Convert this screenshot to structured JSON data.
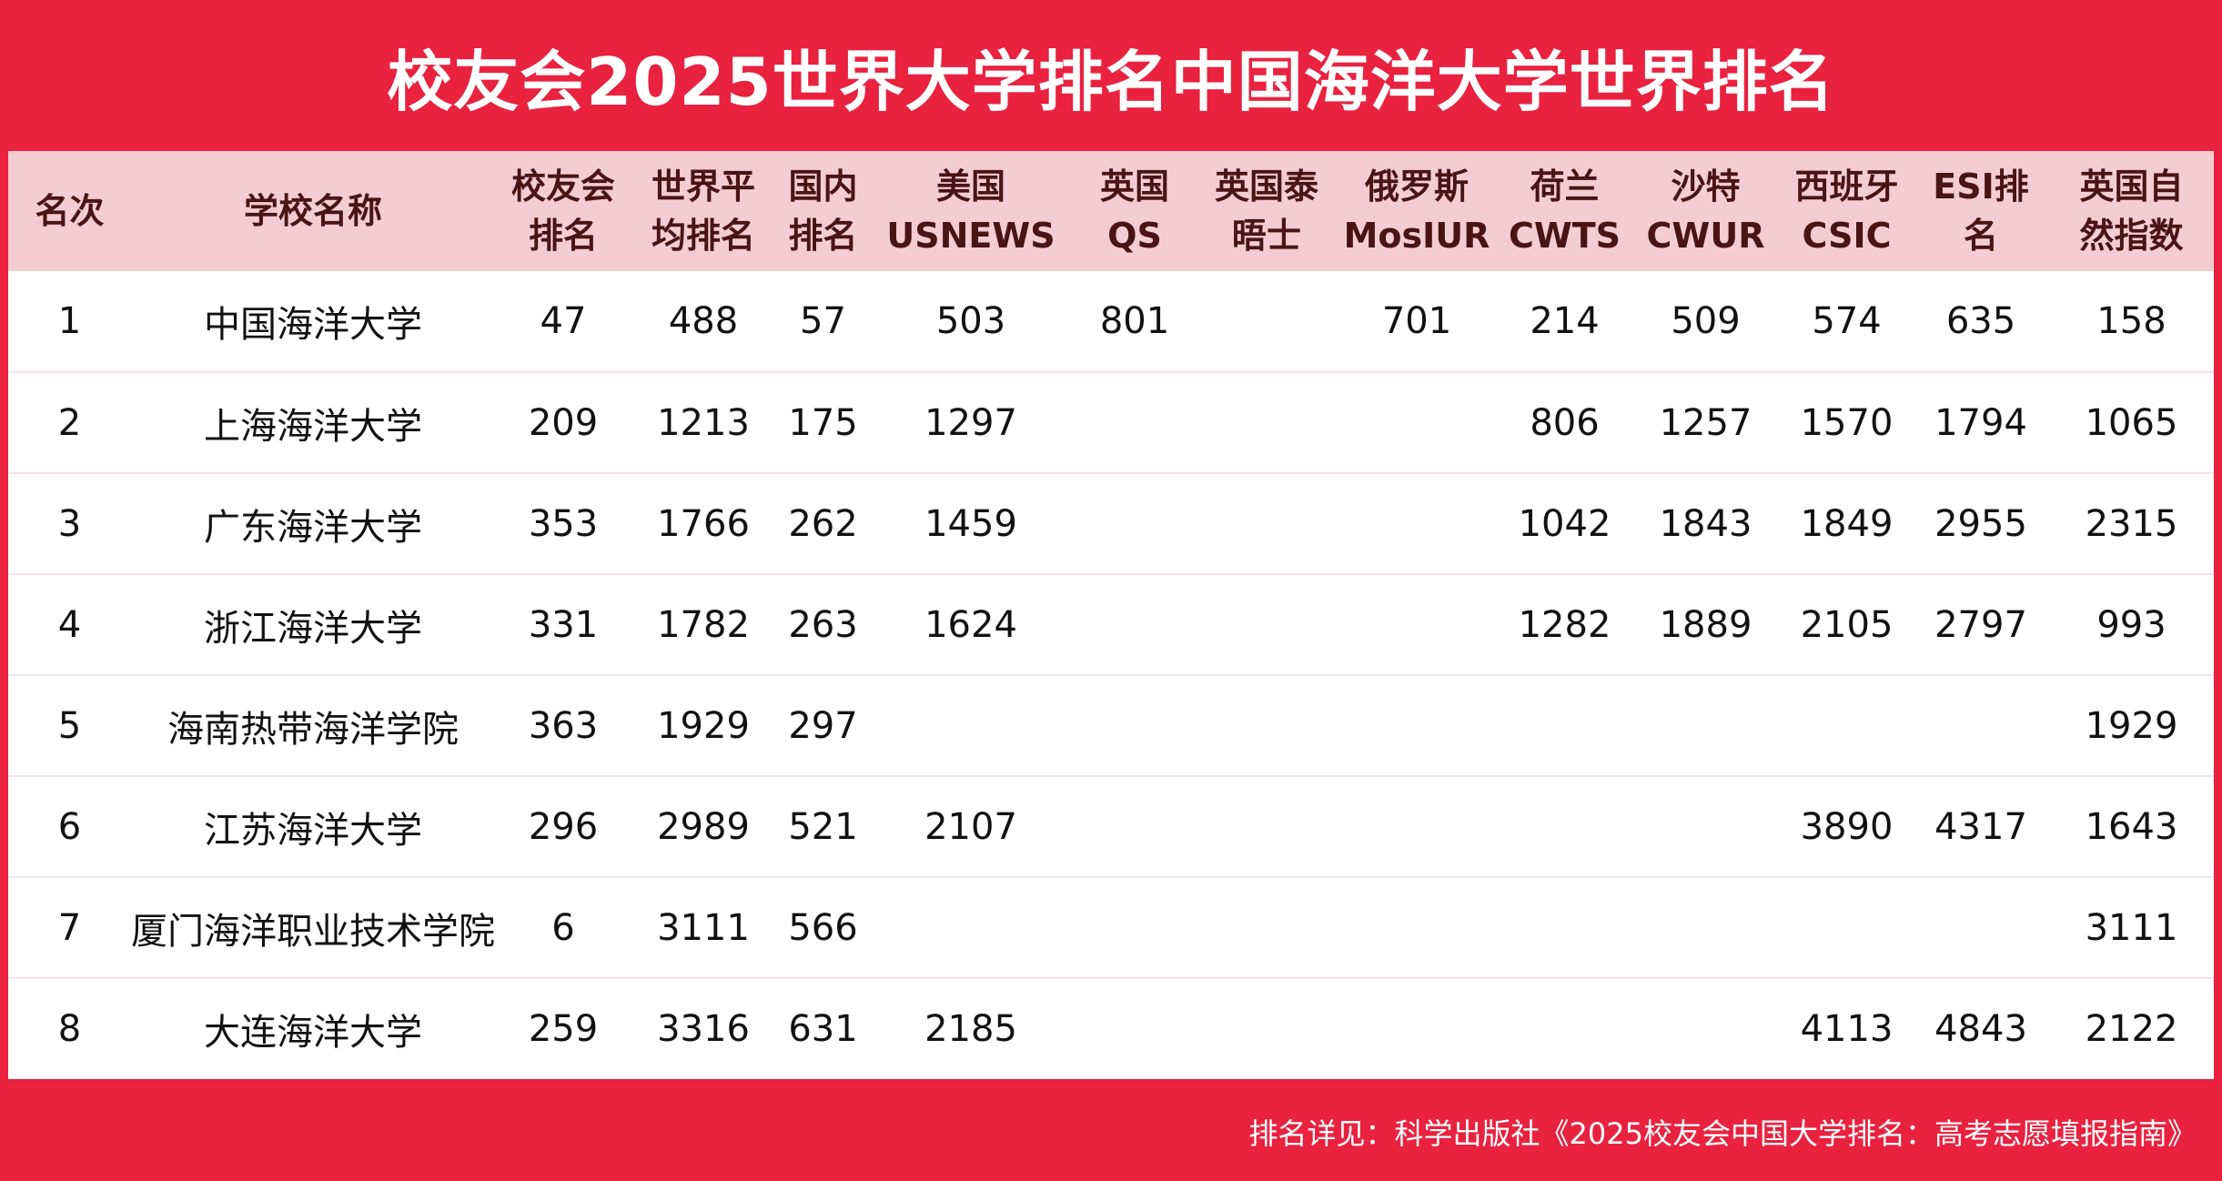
{
  "title": "校友会2025世界大学排名中国海洋大学世界排名",
  "table": {
    "headers": [
      {
        "line1": "名次",
        "line2": ""
      },
      {
        "line1": "学校名称",
        "line2": ""
      },
      {
        "line1": "校友会",
        "line2": "排名"
      },
      {
        "line1": "世界平",
        "line2": "均排名"
      },
      {
        "line1": "国内",
        "line2": "排名"
      },
      {
        "line1": "美国",
        "line2": "USNEWS"
      },
      {
        "line1": "英国",
        "line2": "QS"
      },
      {
        "line1": "英国泰",
        "line2": "晤士"
      },
      {
        "line1": "俄罗斯",
        "line2": "MosIUR"
      },
      {
        "line1": "荷兰",
        "line2": "CWTS"
      },
      {
        "line1": "沙特",
        "line2": "CWUR"
      },
      {
        "line1": "西班牙",
        "line2": "CSIC"
      },
      {
        "line1": "ESI排",
        "line2": "名"
      },
      {
        "line1": "英国自",
        "line2": "然指数"
      }
    ],
    "rows": [
      [
        "1",
        "中国海洋大学",
        "47",
        "488",
        "57",
        "503",
        "801",
        "",
        "701",
        "214",
        "509",
        "574",
        "635",
        "158"
      ],
      [
        "2",
        "上海海洋大学",
        "209",
        "1213",
        "175",
        "1297",
        "",
        "",
        "",
        "806",
        "1257",
        "1570",
        "1794",
        "1065"
      ],
      [
        "3",
        "广东海洋大学",
        "353",
        "1766",
        "262",
        "1459",
        "",
        "",
        "",
        "1042",
        "1843",
        "1849",
        "2955",
        "2315"
      ],
      [
        "4",
        "浙江海洋大学",
        "331",
        "1782",
        "263",
        "1624",
        "",
        "",
        "",
        "1282",
        "1889",
        "2105",
        "2797",
        "993"
      ],
      [
        "5",
        "海南热带海洋学院",
        "363",
        "1929",
        "297",
        "",
        "",
        "",
        "",
        "",
        "",
        "",
        "",
        "1929"
      ],
      [
        "6",
        "江苏海洋大学",
        "296",
        "2989",
        "521",
        "2107",
        "",
        "",
        "",
        "",
        "",
        "3890",
        "4317",
        "1643"
      ],
      [
        "7",
        "厦门海洋职业技术学院",
        "6",
        "3111",
        "566",
        "",
        "",
        "",
        "",
        "",
        "",
        "",
        "",
        "3111"
      ],
      [
        "8",
        "大连海洋大学",
        "259",
        "3316",
        "631",
        "2185",
        "",
        "",
        "",
        "",
        "",
        "4113",
        "4843",
        "2122"
      ]
    ]
  },
  "footer": "排名详见：科学出版社《2025校友会中国大学排名：高考志愿填报指南》"
}
